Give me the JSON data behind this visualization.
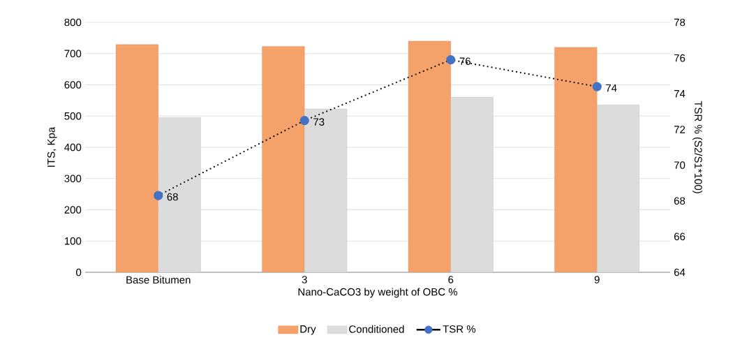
{
  "chart_data": {
    "type": "bar",
    "xlabel": "Nano-CaCO3 by weight of OBC %",
    "ylabel": "ITS, Kpa",
    "y2label": "TSR % (S2/S1*100)",
    "categories": [
      "Base Bitumen",
      "3",
      "6",
      "9"
    ],
    "series": [
      {
        "name": "Dry",
        "color": "#f4a16a",
        "values": [
          729,
          723,
          740,
          720
        ]
      },
      {
        "name": "Conditioned",
        "color": "#dcdcdc",
        "values": [
          495,
          523,
          561,
          536
        ]
      },
      {
        "name": "TSR %",
        "type": "line",
        "axis": "y2",
        "color": "#4472c4",
        "line_style": "dotted",
        "marker": "circle",
        "values": [
          68.3,
          72.5,
          75.9,
          74.4
        ],
        "value_labels": [
          "68",
          "73",
          "76",
          "74"
        ]
      }
    ],
    "ylim": [
      0,
      800
    ],
    "yticks": [
      0,
      100,
      200,
      300,
      400,
      500,
      600,
      700,
      800
    ],
    "y2lim": [
      64,
      78
    ],
    "y2ticks": [
      64,
      66,
      68,
      70,
      72,
      74,
      76,
      78
    ],
    "grid": "y",
    "legend": "bottom"
  }
}
